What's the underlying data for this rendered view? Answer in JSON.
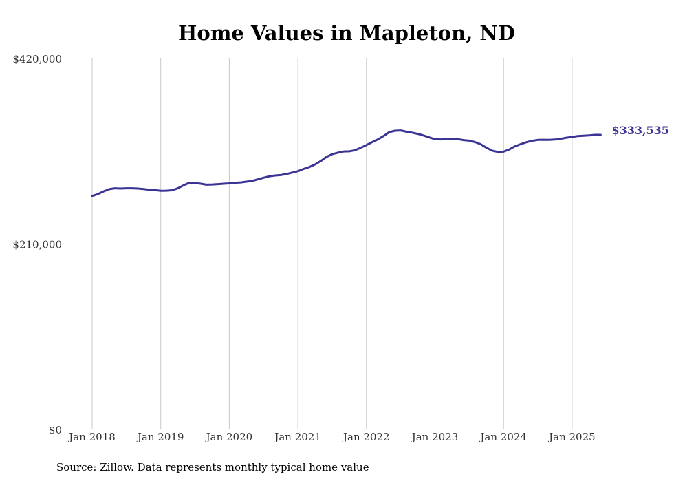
{
  "chart_data": {
    "type": "line",
    "title": "Home Values in Mapleton, ND",
    "source": "Source: Zillow. Data represents monthly typical home value",
    "xlabel": "",
    "ylabel": "",
    "ylim": [
      0,
      420000
    ],
    "y_ticks": [
      0,
      210000,
      420000
    ],
    "y_tick_labels": [
      "$0",
      "$210,000",
      "$420,000"
    ],
    "x_ticks": [
      "2018-01",
      "2019-01",
      "2020-01",
      "2021-01",
      "2022-01",
      "2023-01",
      "2024-01",
      "2025-01"
    ],
    "x_tick_labels": [
      "Jan 2018",
      "Jan 2019",
      "Jan 2020",
      "Jan 2021",
      "Jan 2022",
      "Jan 2023",
      "Jan 2024",
      "Jan 2025"
    ],
    "grid": "vertical",
    "line_color": "#3b3494",
    "end_label": "$333,535",
    "series": [
      {
        "x": [
          "2018-01",
          "2018-02",
          "2018-03",
          "2018-04",
          "2018-05",
          "2018-06",
          "2018-07",
          "2018-08",
          "2018-09",
          "2018-10",
          "2018-11",
          "2018-12",
          "2019-01",
          "2019-02",
          "2019-03",
          "2019-04",
          "2019-05",
          "2019-06",
          "2019-07",
          "2019-08",
          "2019-09",
          "2019-10",
          "2019-11",
          "2019-12",
          "2020-01",
          "2020-02",
          "2020-03",
          "2020-04",
          "2020-05",
          "2020-06",
          "2020-07",
          "2020-08",
          "2020-09",
          "2020-10",
          "2020-11",
          "2020-12",
          "2021-01",
          "2021-02",
          "2021-03",
          "2021-04",
          "2021-05",
          "2021-06",
          "2021-07",
          "2021-08",
          "2021-09",
          "2021-10",
          "2021-11",
          "2021-12",
          "2022-01",
          "2022-02",
          "2022-03",
          "2022-04",
          "2022-05",
          "2022-06",
          "2022-07",
          "2022-08",
          "2022-09",
          "2022-10",
          "2022-11",
          "2022-12",
          "2023-01",
          "2023-02",
          "2023-03",
          "2023-04",
          "2023-05",
          "2023-06",
          "2023-07",
          "2023-08",
          "2023-09",
          "2023-10",
          "2023-11",
          "2023-12",
          "2024-01",
          "2024-02",
          "2024-03",
          "2024-04",
          "2024-05",
          "2024-06",
          "2024-07",
          "2024-08",
          "2024-09",
          "2024-10",
          "2024-11",
          "2024-12",
          "2025-01",
          "2025-02",
          "2025-03",
          "2025-04",
          "2025-05",
          "2025-06"
        ],
        "values": [
          264300,
          266500,
          269500,
          272000,
          273000,
          272700,
          273000,
          273000,
          272700,
          272200,
          271400,
          271000,
          270200,
          270300,
          270800,
          273000,
          276400,
          279300,
          279000,
          278200,
          277100,
          277300,
          277700,
          278200,
          278600,
          279300,
          279700,
          280500,
          281300,
          283200,
          285000,
          286600,
          287500,
          288000,
          289200,
          290800,
          292400,
          294900,
          297000,
          300000,
          303800,
          308500,
          311600,
          313300,
          314700,
          314900,
          316100,
          318900,
          322000,
          325300,
          328400,
          332200,
          336600,
          338200,
          338500,
          337100,
          336000,
          334600,
          332800,
          330600,
          328600,
          328400,
          328700,
          328900,
          328700,
          327600,
          327000,
          325300,
          322900,
          318900,
          315700,
          314200,
          314500,
          317000,
          320600,
          323000,
          325200,
          326800,
          327800,
          328000,
          327900,
          328200,
          329100,
          330300,
          331200,
          332200,
          332600,
          333000,
          333535,
          333535
        ]
      }
    ]
  }
}
